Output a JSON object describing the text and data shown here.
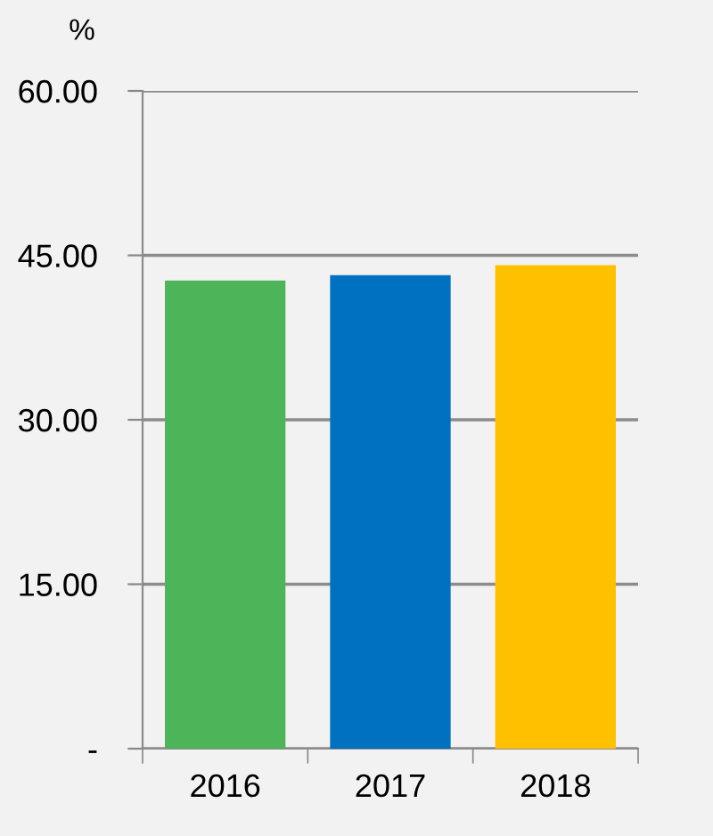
{
  "chart_data": {
    "type": "bar",
    "ylabel": "%",
    "categories": [
      "2016",
      "2017",
      "2018"
    ],
    "values": [
      42.7,
      43.2,
      44.1
    ],
    "colors": [
      "#4eb45a",
      "#0070c0",
      "#ffc000"
    ],
    "ylim": [
      0,
      60
    ],
    "yticks": [
      {
        "value": 0,
        "label": "-"
      },
      {
        "value": 15,
        "label": "15.00"
      },
      {
        "value": 30,
        "label": "30.00"
      },
      {
        "value": 45,
        "label": "45.00"
      },
      {
        "value": 60,
        "label": "60.00"
      }
    ],
    "grid": "y"
  }
}
